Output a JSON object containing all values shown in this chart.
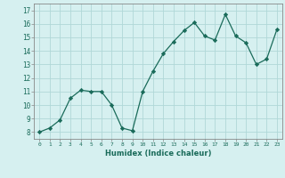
{
  "x": [
    0,
    1,
    2,
    3,
    4,
    5,
    6,
    7,
    8,
    9,
    10,
    11,
    12,
    13,
    14,
    15,
    16,
    17,
    18,
    19,
    20,
    21,
    22,
    23
  ],
  "y": [
    8.0,
    8.3,
    8.9,
    10.5,
    11.1,
    11.0,
    11.0,
    10.0,
    8.3,
    8.1,
    11.0,
    12.5,
    13.8,
    14.7,
    15.5,
    16.1,
    15.1,
    14.8,
    16.7,
    15.1,
    14.6,
    13.0,
    13.4,
    15.6
  ],
  "line_color": "#1a6b5a",
  "marker": "D",
  "marker_size": 2.2,
  "bg_color": "#d6f0f0",
  "grid_color": "#b0d8d8",
  "xlabel": "Humidex (Indice chaleur)",
  "ylabel_ticks": [
    8,
    9,
    10,
    11,
    12,
    13,
    14,
    15,
    16,
    17
  ],
  "ylim": [
    7.5,
    17.5
  ],
  "xlim": [
    -0.5,
    23.5
  ]
}
